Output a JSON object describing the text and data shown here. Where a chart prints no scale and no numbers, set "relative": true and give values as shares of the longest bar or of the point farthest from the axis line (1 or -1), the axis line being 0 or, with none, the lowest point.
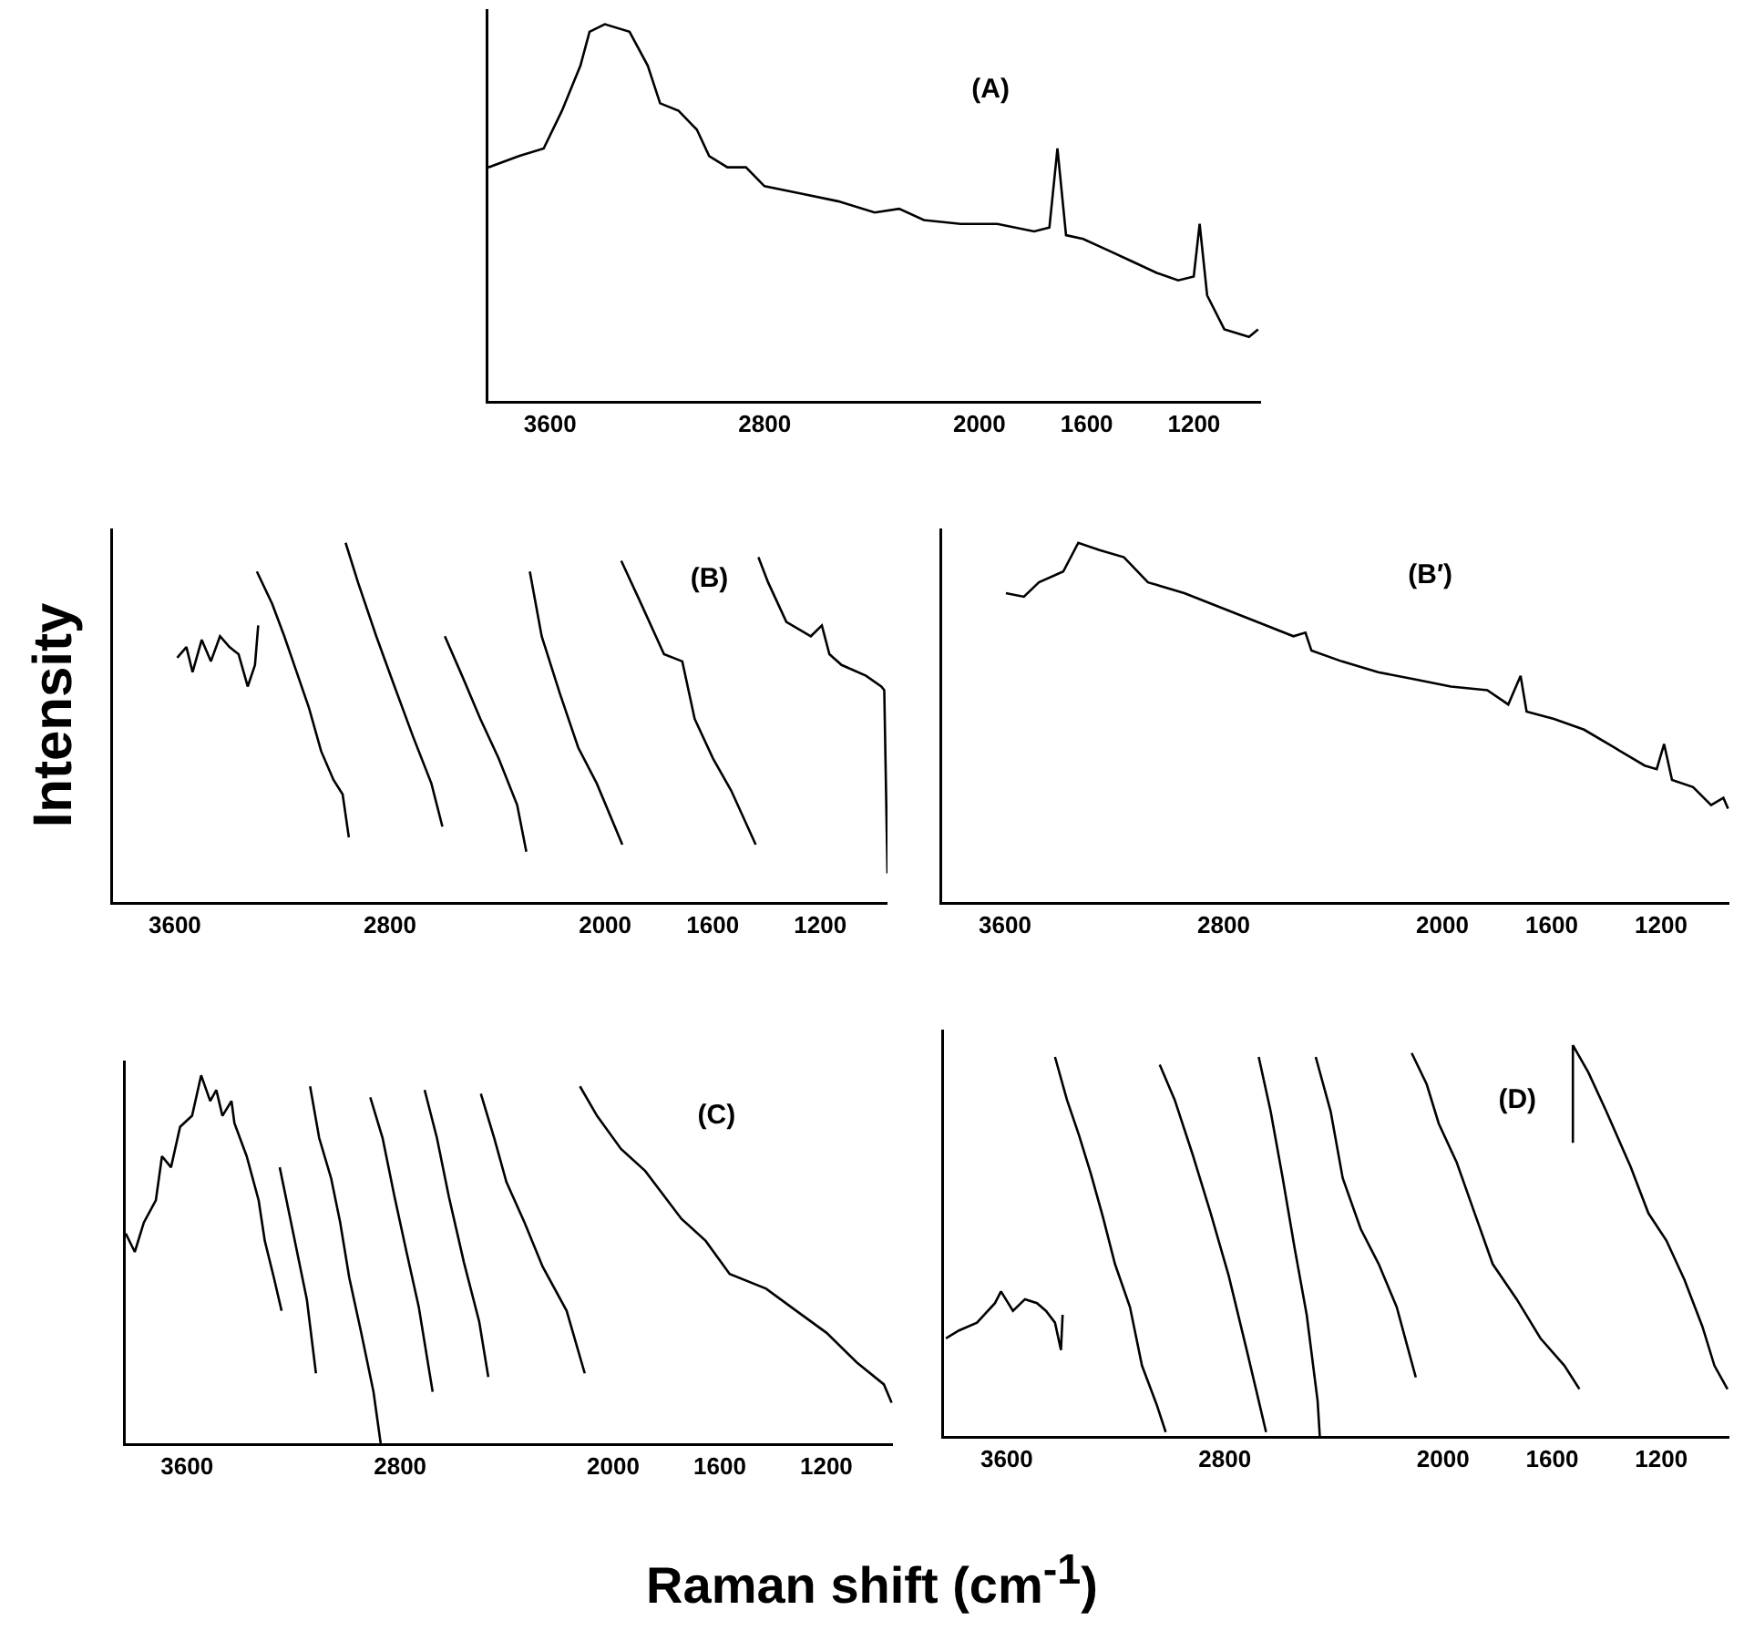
{
  "chart_data": [
    {
      "type": "line",
      "title": "(A)",
      "relative": true,
      "tick_labels": "x",
      "xlim": [
        3830,
        950
      ],
      "xticks": [
        3600,
        2800,
        2000,
        1600,
        1200
      ],
      "series": [
        {
          "color": "#000000",
          "x": [
            3830,
            3716,
            3624,
            3556,
            3487,
            3453,
            3396,
            3304,
            3236,
            3190,
            3121,
            3053,
            3007,
            2939,
            2870,
            2801,
            2664,
            2527,
            2390,
            2299,
            2207,
            2070,
            1933,
            1796,
            1739,
            1709,
            1677,
            1613,
            1521,
            1430,
            1339,
            1259,
            1201,
            1179,
            1151,
            1087,
            995,
            961
          ],
          "values": [
            0.62,
            0.65,
            0.67,
            0.77,
            0.89,
            0.98,
            1.0,
            0.98,
            0.89,
            0.79,
            0.77,
            0.72,
            0.65,
            0.62,
            0.62,
            0.57,
            0.55,
            0.53,
            0.5,
            0.51,
            0.48,
            0.47,
            0.47,
            0.45,
            0.46,
            0.67,
            0.44,
            0.43,
            0.4,
            0.37,
            0.34,
            0.32,
            0.33,
            0.47,
            0.28,
            0.19,
            0.17,
            0.19
          ]
        }
      ]
    },
    {
      "type": "line",
      "title": "(B)",
      "ylabel": "Intensity",
      "relative": true,
      "tick_labels": "x",
      "xlim": [
        3830,
        950
      ],
      "xticks": [
        3600,
        2800,
        2000,
        1600,
        1200
      ],
      "series": [
        {
          "color": "#000000",
          "x": [
            3591,
            3557,
            3534,
            3500,
            3466,
            3432,
            3397,
            3363,
            3329,
            3302,
            3290
          ],
          "values": [
            0.68,
            0.71,
            0.64,
            0.73,
            0.67,
            0.74,
            0.71,
            0.69,
            0.6,
            0.66,
            0.77
          ]
        },
        {
          "color": "#000000",
          "x": [
            3295,
            3238,
            3193,
            3147,
            3101,
            3056,
            3010,
            2976,
            2953
          ],
          "values": [
            0.92,
            0.83,
            0.74,
            0.64,
            0.54,
            0.42,
            0.34,
            0.3,
            0.18
          ]
        },
        {
          "color": "#000000",
          "x": [
            2965,
            2919,
            2851,
            2783,
            2714,
            2646,
            2605
          ],
          "values": [
            1.0,
            0.89,
            0.74,
            0.6,
            0.46,
            0.33,
            0.21
          ]
        },
        {
          "color": "#000000",
          "x": [
            2596,
            2532,
            2464,
            2396,
            2327,
            2293
          ],
          "values": [
            0.74,
            0.63,
            0.51,
            0.4,
            0.27,
            0.14
          ]
        },
        {
          "color": "#000000",
          "x": [
            2280,
            2236,
            2168,
            2100,
            2031,
            1936
          ],
          "values": [
            0.92,
            0.74,
            0.58,
            0.43,
            0.33,
            0.16
          ]
        },
        {
          "color": "#000000",
          "x": [
            1940,
            1872,
            1781,
            1713,
            1667,
            1599,
            1531,
            1440
          ],
          "values": [
            0.95,
            0.84,
            0.69,
            0.67,
            0.51,
            0.4,
            0.31,
            0.16
          ]
        },
        {
          "color": "#000000",
          "x": [
            1430,
            1394,
            1326,
            1235,
            1194,
            1166,
            1121,
            1030,
            973,
            962,
            950
          ],
          "values": [
            0.96,
            0.89,
            0.78,
            0.74,
            0.77,
            0.69,
            0.66,
            0.63,
            0.6,
            0.59,
            0.08
          ]
        }
      ]
    },
    {
      "type": "line",
      "title": "(B′)",
      "relative": true,
      "tick_labels": "x",
      "xlim": [
        3830,
        950
      ],
      "xticks": [
        3600,
        2800,
        2000,
        1600,
        1200
      ],
      "series": [
        {
          "color": "#000000",
          "x": [
            3597,
            3531,
            3476,
            3387,
            3332,
            3254,
            3165,
            3077,
            2944,
            2811,
            2678,
            2545,
            2501,
            2479,
            2368,
            2235,
            2102,
            1969,
            1836,
            1759,
            1714,
            1692,
            1592,
            1482,
            1371,
            1260,
            1216,
            1189,
            1160,
            1083,
            1017,
            972,
            955
          ],
          "values": [
            0.86,
            0.85,
            0.89,
            0.92,
            1.0,
            0.98,
            0.96,
            0.89,
            0.86,
            0.82,
            0.78,
            0.74,
            0.75,
            0.7,
            0.67,
            0.64,
            0.62,
            0.6,
            0.59,
            0.55,
            0.63,
            0.53,
            0.51,
            0.48,
            0.43,
            0.38,
            0.37,
            0.44,
            0.34,
            0.32,
            0.27,
            0.29,
            0.26
          ]
        }
      ]
    },
    {
      "type": "line",
      "title": "(C)",
      "xlabel": "Raman shift (cm$^{-1}$)",
      "relative": true,
      "tick_labels": "x",
      "xlim": [
        3830,
        950
      ],
      "xticks": [
        3600,
        2800,
        2000,
        1600,
        1200
      ],
      "series": [
        {
          "color": "#000000",
          "x": [
            3830,
            3796,
            3762,
            3717,
            3694,
            3660,
            3626,
            3581,
            3547,
            3513,
            3490,
            3467,
            3433,
            3422,
            3376,
            3331,
            3308,
            3274,
            3245
          ],
          "values": [
            0.57,
            0.52,
            0.6,
            0.66,
            0.78,
            0.75,
            0.86,
            0.89,
            1.0,
            0.93,
            0.96,
            0.89,
            0.93,
            0.87,
            0.78,
            0.66,
            0.55,
            0.45,
            0.36
          ]
        },
        {
          "color": "#000000",
          "x": [
            3252,
            3218,
            3184,
            3150,
            3116
          ],
          "values": [
            0.75,
            0.63,
            0.51,
            0.39,
            0.19
          ]
        },
        {
          "color": "#000000",
          "x": [
            3138,
            3104,
            3059,
            3025,
            2991,
            2946,
            2900,
            2873
          ],
          "values": [
            0.97,
            0.83,
            0.72,
            0.6,
            0.45,
            0.3,
            0.14,
            0
          ]
        },
        {
          "color": "#000000",
          "x": [
            2912,
            2866,
            2821,
            2776,
            2730,
            2678
          ],
          "values": [
            0.94,
            0.83,
            0.67,
            0.52,
            0.37,
            0.14
          ]
        },
        {
          "color": "#000000",
          "x": [
            2708,
            2662,
            2617,
            2560,
            2503,
            2469
          ],
          "values": [
            0.96,
            0.83,
            0.67,
            0.49,
            0.33,
            0.18
          ]
        },
        {
          "color": "#000000",
          "x": [
            2497,
            2447,
            2401,
            2333,
            2265,
            2175,
            2107
          ],
          "values": [
            0.95,
            0.83,
            0.71,
            0.6,
            0.48,
            0.36,
            0.19
          ]
        },
        {
          "color": "#000000",
          "x": [
            2125,
            2061,
            1971,
            1880,
            1744,
            1653,
            1563,
            1426,
            1313,
            1199,
            1086,
            984,
            955
          ],
          "values": [
            0.97,
            0.89,
            0.8,
            0.74,
            0.61,
            0.55,
            0.46,
            0.42,
            0.36,
            0.3,
            0.22,
            0.16,
            0.11
          ]
        }
      ]
    },
    {
      "type": "line",
      "title": "(D)",
      "relative": true,
      "tick_labels": "x",
      "xlim": [
        3830,
        950
      ],
      "xticks": [
        3600,
        2800,
        2000,
        1600,
        1200
      ],
      "series": [
        {
          "color": "#000000",
          "x": [
            3823,
            3775,
            3709,
            3643,
            3621,
            3577,
            3533,
            3489,
            3456,
            3423,
            3401,
            3395
          ],
          "values": [
            0.25,
            0.27,
            0.29,
            0.34,
            0.37,
            0.32,
            0.35,
            0.34,
            0.32,
            0.29,
            0.22,
            0.31
          ]
        },
        {
          "color": "#000000",
          "x": [
            3423,
            3379,
            3335,
            3291,
            3247,
            3203,
            3148,
            3104,
            3050,
            3017
          ],
          "values": [
            0.97,
            0.86,
            0.77,
            0.67,
            0.56,
            0.44,
            0.33,
            0.18,
            0.08,
            0.01
          ]
        },
        {
          "color": "#000000",
          "x": [
            3039,
            2984,
            2918,
            2852,
            2786,
            2720,
            2676,
            2649
          ],
          "values": [
            0.95,
            0.86,
            0.72,
            0.57,
            0.41,
            0.22,
            0.09,
            0.01
          ]
        },
        {
          "color": "#000000",
          "x": [
            2676,
            2632,
            2588,
            2544,
            2500,
            2460,
            2452
          ],
          "values": [
            0.97,
            0.83,
            0.66,
            0.48,
            0.31,
            0.09,
            0
          ]
        },
        {
          "color": "#000000",
          "x": [
            2467,
            2412,
            2368,
            2302,
            2236,
            2170,
            2100
          ],
          "values": [
            0.97,
            0.83,
            0.66,
            0.53,
            0.44,
            0.33,
            0.15
          ]
        },
        {
          "color": "#000000",
          "x": [
            2115,
            2060,
            2016,
            1950,
            1884,
            1818,
            1730,
            1643,
            1555,
            1500
          ],
          "values": [
            0.98,
            0.9,
            0.8,
            0.7,
            0.57,
            0.44,
            0.35,
            0.25,
            0.18,
            0.12
          ]
        },
        {
          "color": "#000000",
          "x": [
            1524,
            1524,
            1467,
            1401,
            1313,
            1247,
            1181,
            1115,
            1049,
            1005,
            957
          ],
          "values": [
            0.75,
            1.0,
            0.93,
            0.83,
            0.69,
            0.57,
            0.5,
            0.4,
            0.28,
            0.18,
            0.12
          ]
        }
      ]
    }
  ]
}
